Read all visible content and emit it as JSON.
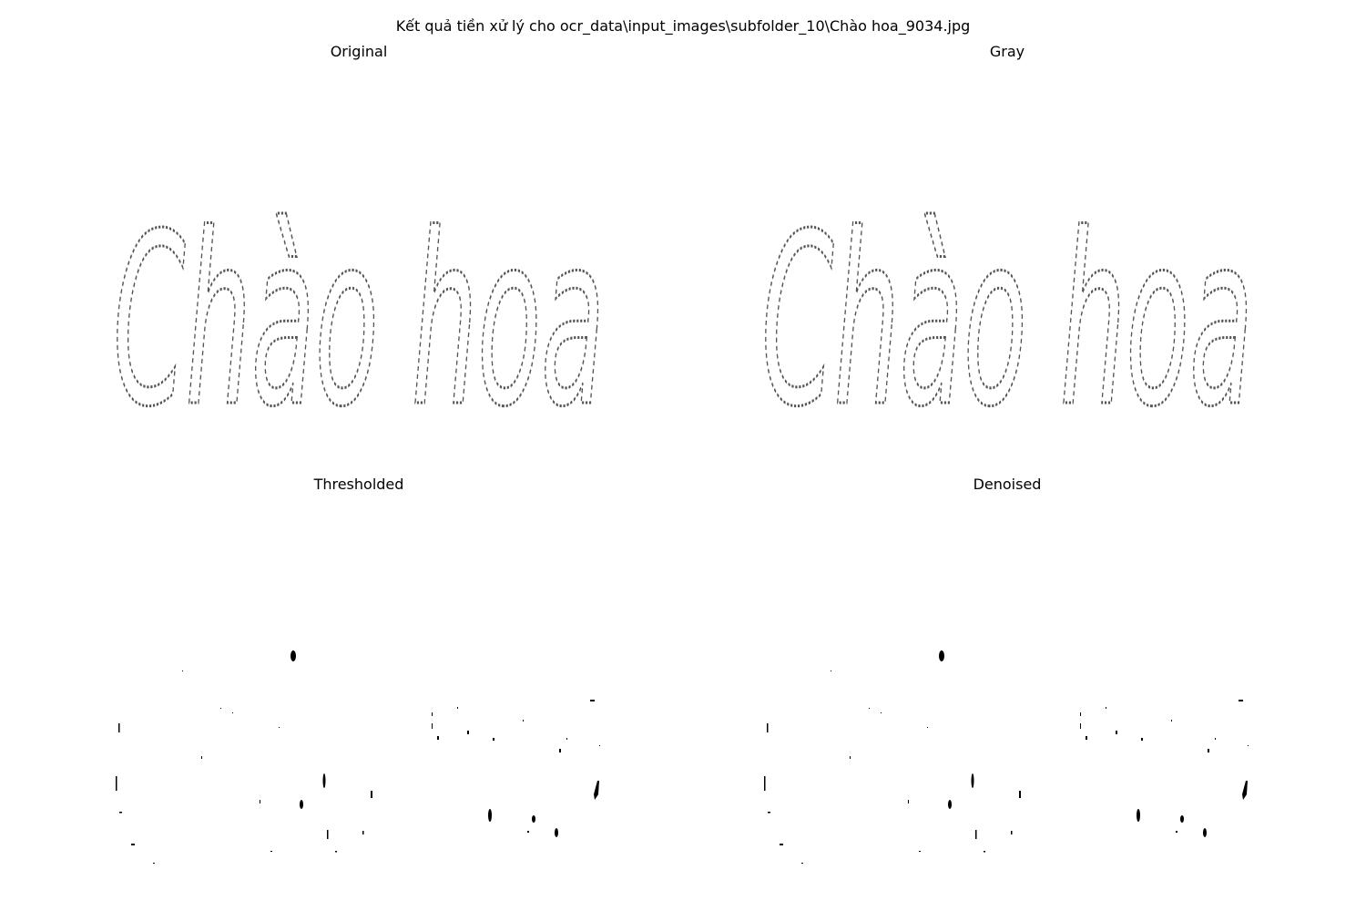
{
  "figure": {
    "suptitle": "Kết quả tiền xử lý cho ocr_data\\input_images\\subfolder_10\\Chào hoa_9034.jpg"
  },
  "panels": [
    {
      "title": "Original"
    },
    {
      "title": "Gray"
    },
    {
      "title": "Thresholded"
    },
    {
      "title": "Denoised"
    }
  ],
  "image_content": {
    "word": "Chào hoa",
    "style": "faint dotted handwritten strokes on white background"
  },
  "colors": {
    "background": "#ffffff",
    "stroke": "#555555",
    "speck": "#000000"
  }
}
